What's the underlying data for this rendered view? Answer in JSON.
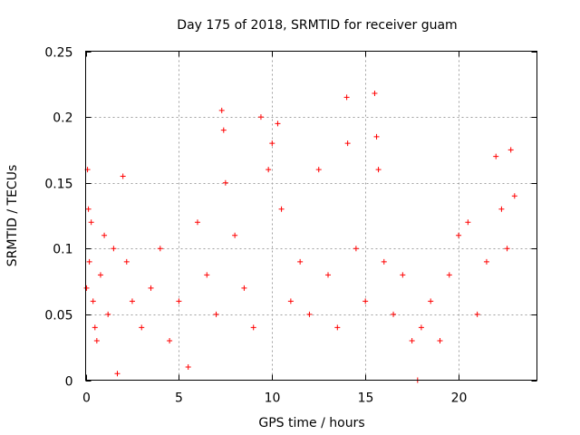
{
  "chart_data": {
    "type": "scatter",
    "title": "Day 175 of 2018, SRMTID for receiver guam",
    "xlabel": "GPS time / hours",
    "ylabel": "SRMTID / TECUs",
    "xlim": [
      0,
      24.2
    ],
    "ylim": [
      0,
      0.25
    ],
    "xticks": [
      0,
      5,
      10,
      15,
      20
    ],
    "xtick_labels": [
      "0",
      "5",
      "10",
      "15",
      "20"
    ],
    "yticks": [
      0,
      0.05,
      0.1,
      0.15,
      0.2,
      0.25
    ],
    "ytick_labels": [
      "0",
      "0.05",
      "0.1",
      "0.15",
      "0.2",
      "0.25"
    ],
    "grid": true,
    "marker": "+",
    "series": [
      {
        "name": "SRMTID",
        "color": "#ff0000",
        "approximate": true,
        "x_range": [
          0,
          23.0
        ],
        "points": [
          [
            0.05,
            0.07
          ],
          [
            0.1,
            0.16
          ],
          [
            0.15,
            0.13
          ],
          [
            0.2,
            0.09
          ],
          [
            0.3,
            0.12
          ],
          [
            0.4,
            0.06
          ],
          [
            0.5,
            0.04
          ],
          [
            0.6,
            0.03
          ],
          [
            0.8,
            0.08
          ],
          [
            1.0,
            0.11
          ],
          [
            1.2,
            0.05
          ],
          [
            1.5,
            0.1
          ],
          [
            1.7,
            0.005
          ],
          [
            2.0,
            0.155
          ],
          [
            2.2,
            0.09
          ],
          [
            2.5,
            0.06
          ],
          [
            3.0,
            0.04
          ],
          [
            3.5,
            0.07
          ],
          [
            4.0,
            0.1
          ],
          [
            4.5,
            0.03
          ],
          [
            5.0,
            0.06
          ],
          [
            5.5,
            0.01
          ],
          [
            6.0,
            0.12
          ],
          [
            6.5,
            0.08
          ],
          [
            7.0,
            0.05
          ],
          [
            7.3,
            0.205
          ],
          [
            7.4,
            0.19
          ],
          [
            7.5,
            0.15
          ],
          [
            8.0,
            0.11
          ],
          [
            8.5,
            0.07
          ],
          [
            9.0,
            0.04
          ],
          [
            9.4,
            0.2
          ],
          [
            9.8,
            0.16
          ],
          [
            10.0,
            0.18
          ],
          [
            10.3,
            0.195
          ],
          [
            10.5,
            0.13
          ],
          [
            11.0,
            0.06
          ],
          [
            11.5,
            0.09
          ],
          [
            12.0,
            0.05
          ],
          [
            12.5,
            0.16
          ],
          [
            13.0,
            0.08
          ],
          [
            13.5,
            0.04
          ],
          [
            14.0,
            0.215
          ],
          [
            14.05,
            0.18
          ],
          [
            14.5,
            0.1
          ],
          [
            15.0,
            0.06
          ],
          [
            15.5,
            0.218
          ],
          [
            15.6,
            0.185
          ],
          [
            15.7,
            0.16
          ],
          [
            16.0,
            0.09
          ],
          [
            16.5,
            0.05
          ],
          [
            17.0,
            0.08
          ],
          [
            17.5,
            0.03
          ],
          [
            17.8,
            0.0
          ],
          [
            18.0,
            0.04
          ],
          [
            18.5,
            0.06
          ],
          [
            19.0,
            0.03
          ],
          [
            19.5,
            0.08
          ],
          [
            20.0,
            0.11
          ],
          [
            20.5,
            0.12
          ],
          [
            21.0,
            0.05
          ],
          [
            21.5,
            0.09
          ],
          [
            22.0,
            0.17
          ],
          [
            22.3,
            0.13
          ],
          [
            22.6,
            0.1
          ],
          [
            22.8,
            0.175
          ],
          [
            23.0,
            0.14
          ]
        ]
      }
    ]
  }
}
